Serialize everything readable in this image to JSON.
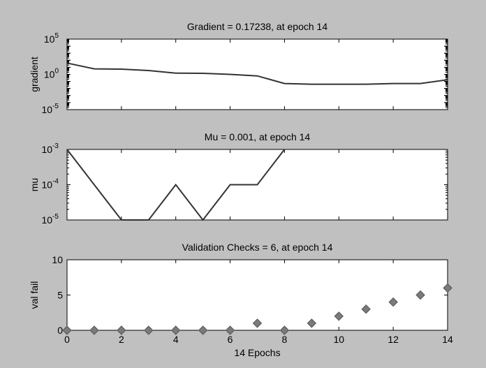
{
  "chart_data": [
    {
      "type": "line",
      "title": "Gradient = 0.17238, at epoch 14",
      "xlabel": "",
      "ylabel": "gradient",
      "yscale": "log",
      "xlim": [
        0,
        14
      ],
      "ylim": [
        1e-05,
        100000.0
      ],
      "yticks": [
        {
          "base": "10",
          "exp": "5"
        },
        {
          "base": "10",
          "exp": "0"
        },
        {
          "base": "10",
          "exp": "-5"
        }
      ],
      "show_x_tick_labels": false,
      "grid": false,
      "series": [
        {
          "x": [
            0,
            1,
            2,
            3,
            4,
            5,
            6,
            7,
            8,
            9,
            10,
            11,
            12,
            13,
            14
          ],
          "y": [
            40,
            6,
            5.5,
            3.5,
            1.5,
            1.4,
            1.0,
            0.6,
            0.05,
            0.04,
            0.04,
            0.04,
            0.05,
            0.05,
            0.17238
          ],
          "color": "#333333"
        }
      ]
    },
    {
      "type": "line",
      "title": "Mu = 0.001, at epoch 14",
      "xlabel": "",
      "ylabel": "mu",
      "yscale": "log",
      "xlim": [
        0,
        14
      ],
      "ylim": [
        1e-05,
        0.001
      ],
      "yticks": [
        {
          "base": "10",
          "exp": "-3"
        },
        {
          "base": "10",
          "exp": "-4"
        },
        {
          "base": "10",
          "exp": "-5"
        }
      ],
      "show_x_tick_labels": false,
      "grid": false,
      "series": [
        {
          "x": [
            0,
            1,
            2,
            3,
            4,
            5,
            6,
            7,
            8
          ],
          "y": [
            0.001,
            0.0001,
            1e-05,
            1e-05,
            0.0001,
            1e-05,
            0.0001,
            0.0001,
            0.001
          ],
          "color": "#333333"
        }
      ]
    },
    {
      "type": "scatter",
      "title": "Validation Checks = 6, at epoch 14",
      "xlabel": "14 Epochs",
      "ylabel": "val fail",
      "yscale": "linear",
      "xlim": [
        0,
        14
      ],
      "ylim": [
        0,
        10
      ],
      "xticks": [
        "0",
        "2",
        "4",
        "6",
        "8",
        "10",
        "12",
        "14"
      ],
      "yticks": [
        "0",
        "5",
        "10"
      ],
      "show_x_tick_labels": true,
      "grid": false,
      "marker": "diamond",
      "marker_color": "#7a7a7a",
      "series": [
        {
          "x": [
            0,
            1,
            2,
            3,
            4,
            5,
            6,
            7,
            8,
            9,
            10,
            11,
            12,
            13,
            14
          ],
          "y": [
            0,
            0,
            0,
            0,
            0,
            0,
            0,
            1,
            0,
            1,
            2,
            3,
            4,
            5,
            6
          ]
        }
      ]
    }
  ]
}
